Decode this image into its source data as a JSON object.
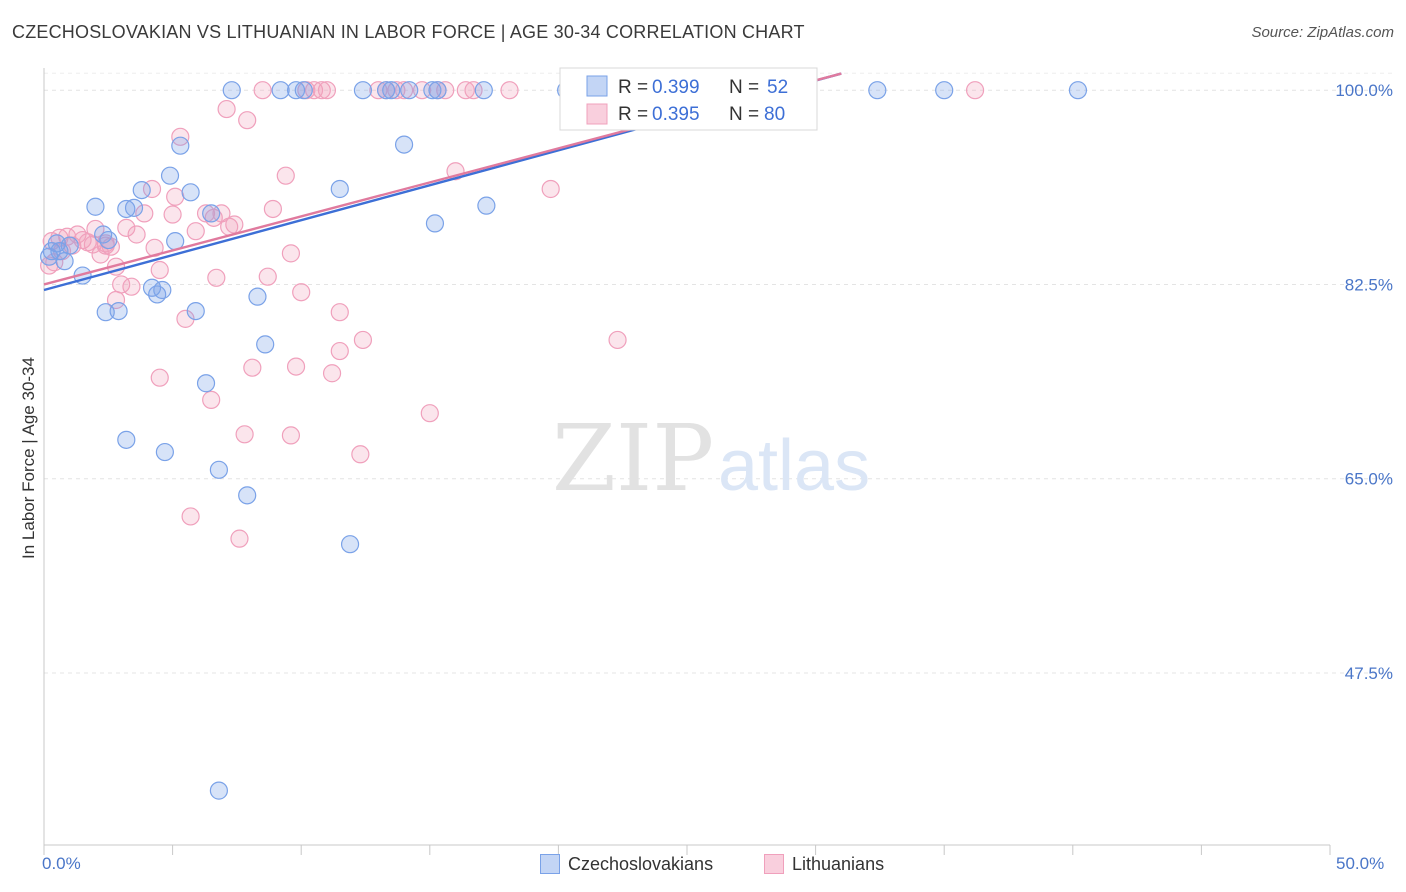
{
  "title": "CZECHOSLOVAKIAN VS LITHUANIAN IN LABOR FORCE | AGE 30-34 CORRELATION CHART",
  "source": "Source: ZipAtlas.com",
  "watermark": {
    "zip": "ZIP",
    "atlas": "atlas"
  },
  "chart_data": {
    "type": "scatter",
    "xlabel": "",
    "ylabel": "In Labor Force | Age 30-34",
    "xlim": [
      0,
      50
    ],
    "ylim": [
      32,
      102
    ],
    "x_tick_labels": [
      "0.0%",
      "50.0%"
    ],
    "y_ticks": [
      100.0,
      82.5,
      65.0,
      47.5
    ],
    "y_tick_labels": [
      "100.0%",
      "82.5%",
      "65.0%",
      "47.5%"
    ],
    "grid": true,
    "colors": {
      "czech": "#7aa2e8",
      "lith": "#f0a0bc",
      "czech_line": "#3d6fd6",
      "lith_line": "#e07a9e"
    },
    "legend": [
      {
        "r_label": "R = ",
        "r_value": "0.399",
        "n_label": "N = ",
        "n_value": "52"
      },
      {
        "r_label": "R = ",
        "r_value": "0.395",
        "n_label": "N = ",
        "n_value": "80"
      }
    ],
    "series": [
      {
        "name": "Czechoslovakians",
        "trend": {
          "x0": 0,
          "y0": 82.0,
          "x1": 31,
          "y1": 101.5
        },
        "points": [
          [
            0.3,
            85.5
          ],
          [
            0.5,
            86.2
          ],
          [
            0.6,
            85.5
          ],
          [
            0.8,
            84.6
          ],
          [
            1.5,
            83.3
          ],
          [
            2.0,
            89.5
          ],
          [
            2.3,
            87.0
          ],
          [
            2.5,
            86.5
          ],
          [
            2.4,
            80.0
          ],
          [
            2.9,
            80.1
          ],
          [
            3.2,
            89.3
          ],
          [
            3.5,
            89.4
          ],
          [
            3.8,
            91.0
          ],
          [
            4.2,
            82.2
          ],
          [
            4.4,
            81.6
          ],
          [
            4.6,
            82.0
          ],
          [
            4.9,
            92.3
          ],
          [
            5.1,
            86.4
          ],
          [
            5.3,
            95.0
          ],
          [
            5.7,
            90.8
          ],
          [
            5.9,
            80.1
          ],
          [
            6.3,
            73.6
          ],
          [
            6.5,
            88.9
          ],
          [
            6.8,
            65.8
          ],
          [
            7.3,
            100.0
          ],
          [
            7.9,
            63.5
          ],
          [
            8.3,
            81.4
          ],
          [
            8.6,
            77.1
          ],
          [
            9.2,
            100.0
          ],
          [
            9.8,
            100.0
          ],
          [
            10.1,
            100.0
          ],
          [
            11.5,
            91.1
          ],
          [
            11.9,
            59.1
          ],
          [
            12.4,
            100.0
          ],
          [
            13.3,
            100.0
          ],
          [
            13.5,
            100.0
          ],
          [
            14.0,
            95.1
          ],
          [
            14.2,
            100.0
          ],
          [
            15.1,
            100.0
          ],
          [
            15.3,
            100.0
          ],
          [
            15.2,
            88.0
          ],
          [
            17.1,
            100.0
          ],
          [
            17.2,
            89.6
          ],
          [
            20.3,
            100.0
          ],
          [
            32.4,
            100.0
          ],
          [
            35.0,
            100.0
          ],
          [
            40.2,
            100.0
          ],
          [
            3.2,
            68.5
          ],
          [
            4.7,
            67.4
          ],
          [
            6.8,
            36.9
          ],
          [
            0.2,
            85.0
          ],
          [
            1.0,
            86.0
          ]
        ]
      },
      {
        "name": "Lithuanians",
        "trend": {
          "x0": 0,
          "y0": 82.5,
          "x1": 31,
          "y1": 101.5
        },
        "points": [
          [
            0.2,
            84.2
          ],
          [
            0.3,
            86.4
          ],
          [
            0.4,
            84.5
          ],
          [
            0.6,
            86.7
          ],
          [
            0.7,
            85.5
          ],
          [
            1.1,
            86.0
          ],
          [
            1.3,
            87.0
          ],
          [
            1.5,
            86.5
          ],
          [
            1.7,
            86.3
          ],
          [
            1.9,
            86.1
          ],
          [
            2.0,
            87.5
          ],
          [
            2.2,
            85.2
          ],
          [
            2.4,
            86.0
          ],
          [
            2.6,
            85.9
          ],
          [
            2.8,
            84.1
          ],
          [
            2.8,
            81.1
          ],
          [
            3.0,
            82.5
          ],
          [
            3.2,
            87.6
          ],
          [
            3.4,
            82.3
          ],
          [
            3.6,
            87.0
          ],
          [
            3.9,
            88.9
          ],
          [
            4.2,
            91.1
          ],
          [
            4.3,
            85.8
          ],
          [
            4.5,
            83.8
          ],
          [
            4.5,
            74.1
          ],
          [
            5.0,
            88.8
          ],
          [
            5.1,
            90.4
          ],
          [
            5.3,
            95.8
          ],
          [
            5.5,
            79.4
          ],
          [
            5.7,
            61.6
          ],
          [
            5.9,
            87.3
          ],
          [
            6.3,
            88.9
          ],
          [
            6.5,
            72.1
          ],
          [
            6.6,
            88.5
          ],
          [
            6.7,
            83.1
          ],
          [
            6.9,
            88.9
          ],
          [
            7.1,
            98.3
          ],
          [
            7.2,
            87.7
          ],
          [
            7.4,
            87.9
          ],
          [
            7.6,
            59.6
          ],
          [
            7.8,
            69.0
          ],
          [
            7.9,
            97.3
          ],
          [
            8.1,
            75.0
          ],
          [
            8.5,
            100.0
          ],
          [
            8.7,
            83.2
          ],
          [
            8.9,
            89.3
          ],
          [
            9.4,
            92.3
          ],
          [
            9.6,
            85.3
          ],
          [
            9.6,
            68.9
          ],
          [
            9.8,
            75.1
          ],
          [
            10.0,
            81.8
          ],
          [
            10.5,
            100.0
          ],
          [
            10.8,
            100.0
          ],
          [
            11.0,
            100.0
          ],
          [
            11.2,
            74.5
          ],
          [
            11.5,
            76.5
          ],
          [
            11.5,
            80.0
          ],
          [
            12.4,
            77.5
          ],
          [
            12.3,
            67.2
          ],
          [
            13.0,
            100.0
          ],
          [
            13.3,
            100.0
          ],
          [
            13.7,
            100.0
          ],
          [
            14.0,
            100.0
          ],
          [
            14.7,
            100.0
          ],
          [
            15.0,
            70.9
          ],
          [
            15.3,
            100.0
          ],
          [
            15.6,
            100.0
          ],
          [
            16.0,
            92.7
          ],
          [
            16.4,
            100.0
          ],
          [
            16.7,
            100.0
          ],
          [
            18.1,
            100.0
          ],
          [
            19.7,
            91.1
          ],
          [
            20.6,
            100.0
          ],
          [
            22.3,
            77.5
          ],
          [
            23.0,
            100.0
          ],
          [
            24.2,
            100.0
          ],
          [
            36.2,
            100.0
          ],
          [
            0.9,
            86.8
          ],
          [
            2.4,
            86.2
          ],
          [
            10.2,
            100.0
          ]
        ]
      }
    ]
  }
}
